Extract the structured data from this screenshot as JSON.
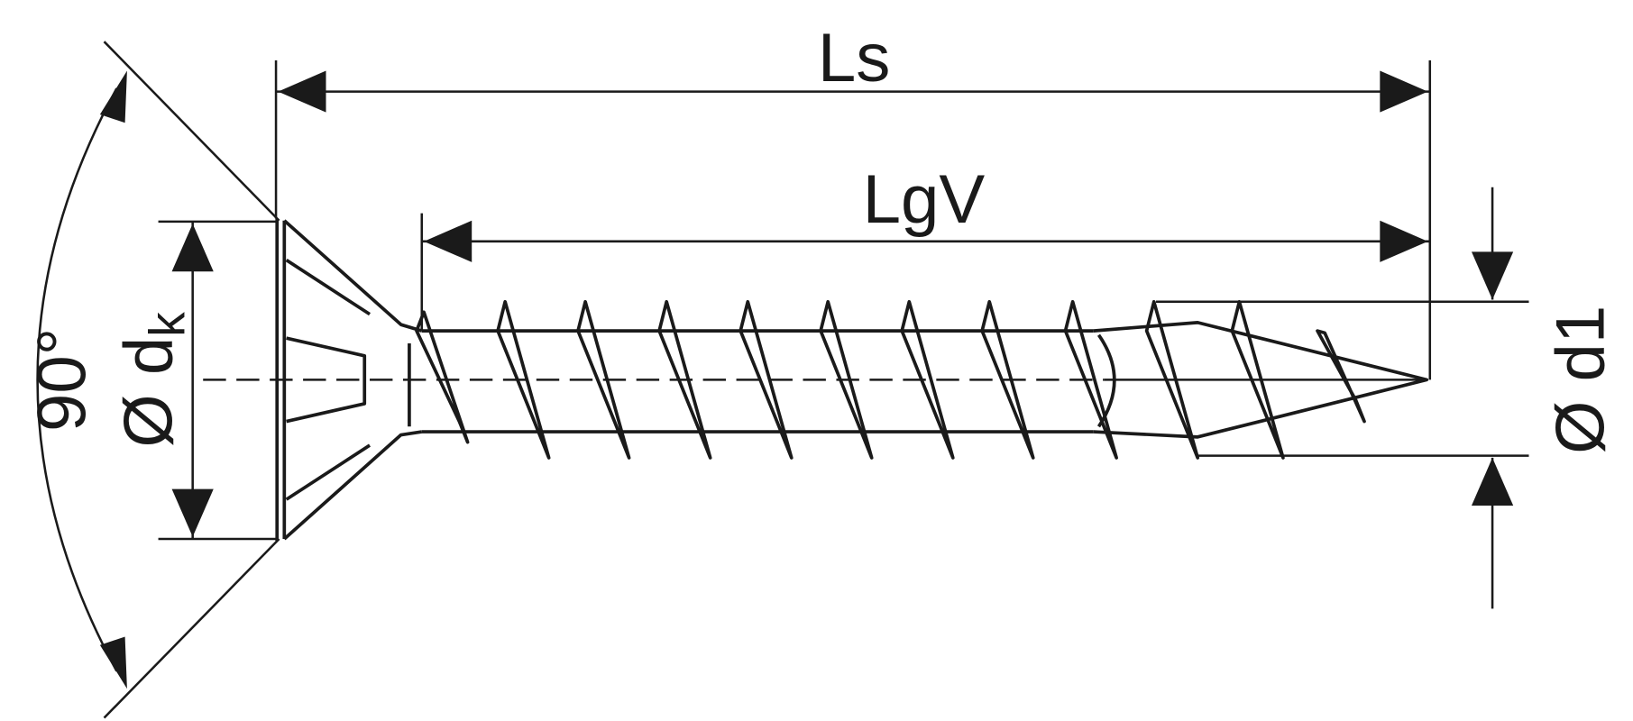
{
  "labels": {
    "overall_length": "Ls",
    "thread_length": "LgV",
    "head_angle": "90°",
    "head_diameter": "Ø d",
    "head_diameter_sub": "k",
    "thread_diameter": "Ø d1"
  },
  "colors": {
    "line": "#1a1a1a",
    "background": "#ffffff"
  }
}
